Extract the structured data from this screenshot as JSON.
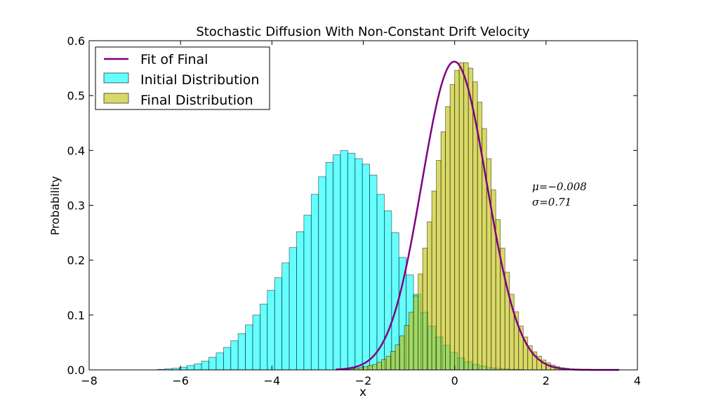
{
  "chart_data": {
    "type": "bar",
    "title": "Stochastic Diffusion With Non-Constant Drift Velocity",
    "xlabel": "x",
    "ylabel": "Probability",
    "xlim": [
      -8,
      4
    ],
    "ylim": [
      0,
      0.6
    ],
    "xticks": [
      "−8",
      "−6",
      "−4",
      "−2",
      "0",
      "2",
      "4"
    ],
    "yticks": [
      "0.0",
      "0.1",
      "0.2",
      "0.3",
      "0.4",
      "0.5",
      "0.6"
    ],
    "grid": false,
    "legend_position": "top-left",
    "legend": [
      {
        "label": "Fit of Final",
        "kind": "line",
        "color": "#800080"
      },
      {
        "label": "Initial Distribution",
        "kind": "patch",
        "color": "#00ffff"
      },
      {
        "label": "Final Distribution",
        "kind": "patch",
        "color": "#bfbf00"
      }
    ],
    "annotation": {
      "mu_text": "μ=−0.008",
      "sigma_text": "σ=0.71"
    },
    "series": [
      {
        "name": "Initial Distribution",
        "color": "#00ffff",
        "alpha": 0.6,
        "bin_width": 0.16,
        "x_start": -6.5,
        "values": [
          0.001,
          0.002,
          0.003,
          0.005,
          0.008,
          0.011,
          0.016,
          0.023,
          0.031,
          0.041,
          0.053,
          0.066,
          0.082,
          0.1,
          0.12,
          0.145,
          0.168,
          0.195,
          0.223,
          0.252,
          0.282,
          0.32,
          0.352,
          0.378,
          0.392,
          0.4,
          0.395,
          0.385,
          0.375,
          0.355,
          0.32,
          0.29,
          0.25,
          0.205,
          0.173,
          0.138,
          0.105,
          0.08,
          0.06,
          0.045,
          0.032,
          0.022,
          0.015,
          0.01,
          0.007,
          0.004,
          0.003,
          0.002,
          0.001,
          0.001
        ]
      },
      {
        "name": "Final Distribution",
        "color": "#bfbf00",
        "alpha": 0.6,
        "bin_width": 0.1,
        "x_start": -2.5,
        "values": [
          0.001,
          0.001,
          0.002,
          0.003,
          0.004,
          0.006,
          0.008,
          0.01,
          0.014,
          0.019,
          0.025,
          0.034,
          0.046,
          0.062,
          0.081,
          0.105,
          0.135,
          0.175,
          0.222,
          0.27,
          0.326,
          0.382,
          0.434,
          0.48,
          0.52,
          0.546,
          0.56,
          0.56,
          0.55,
          0.525,
          0.488,
          0.44,
          0.385,
          0.328,
          0.274,
          0.222,
          0.178,
          0.138,
          0.106,
          0.08,
          0.06,
          0.044,
          0.033,
          0.025,
          0.018,
          0.013,
          0.009,
          0.006,
          0.004,
          0.003,
          0.002,
          0.001,
          0.001
        ]
      }
    ],
    "fit": {
      "name": "Fit of Final",
      "color": "#800080",
      "mu": -0.008,
      "sigma": 0.71,
      "x_range": [
        -2.6,
        3.6
      ]
    }
  }
}
